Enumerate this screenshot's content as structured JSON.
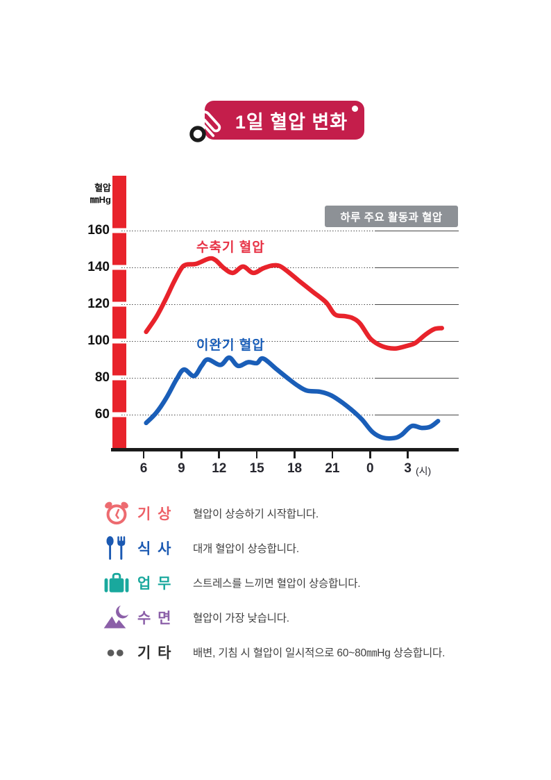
{
  "title": {
    "badge_text": "1일 혈압 변화"
  },
  "accent_colors": {
    "badge_red": "#c41e4b",
    "systolic_red": "#e8232b",
    "diastolic_blue": "#1a5eb8",
    "annotation_gray": "#8d9196"
  },
  "chart_data": {
    "type": "line",
    "title": "1일 혈압 변화",
    "annotation": "하루 주요 활동과 혈압",
    "ylabel_line1": "혈압",
    "ylabel_line2": "㎜Hg",
    "x_unit": "(시)",
    "ylim": [
      45,
      172
    ],
    "grid": true,
    "y_ticks": [
      "160",
      "140",
      "120",
      "100",
      "80",
      "60"
    ],
    "y_tick_values": [
      160,
      140,
      120,
      100,
      80,
      60
    ],
    "x_ticks": [
      {
        "label": "6",
        "hour": 6
      },
      {
        "label": "9",
        "hour": 9
      },
      {
        "label": "12",
        "hour": 12
      },
      {
        "label": "15",
        "hour": 15
      },
      {
        "label": "18",
        "hour": 18
      },
      {
        "label": "21",
        "hour": 21
      },
      {
        "label": "0",
        "hour": 24
      },
      {
        "label": "3",
        "hour": 27
      }
    ],
    "series": [
      {
        "name": "수축기 혈압",
        "color": "#e8232b",
        "label_color": "#e73346",
        "points": [
          [
            6.2,
            105
          ],
          [
            7,
            113
          ],
          [
            7.7,
            122
          ],
          [
            8.4,
            132
          ],
          [
            9,
            139.5
          ],
          [
            9.4,
            141.5
          ],
          [
            10.2,
            142
          ],
          [
            11.2,
            144.8
          ],
          [
            11.7,
            144
          ],
          [
            12.4,
            139.5
          ],
          [
            13.1,
            137
          ],
          [
            13.9,
            140.5
          ],
          [
            14.7,
            137
          ],
          [
            15.5,
            139.5
          ],
          [
            16.2,
            141
          ],
          [
            16.8,
            140.8
          ],
          [
            17.5,
            137.5
          ],
          [
            18.3,
            133
          ],
          [
            19.4,
            127
          ],
          [
            20.5,
            121
          ],
          [
            21.2,
            114.5
          ],
          [
            22,
            113.5
          ],
          [
            22.6,
            112.5
          ],
          [
            23.2,
            109.5
          ],
          [
            24,
            101.5
          ],
          [
            24.7,
            98
          ],
          [
            25.4,
            96.3
          ],
          [
            26.1,
            96
          ],
          [
            27,
            97.5
          ],
          [
            27.6,
            99
          ],
          [
            28.4,
            103.5
          ],
          [
            29.1,
            106.5
          ],
          [
            29.7,
            107
          ]
        ]
      },
      {
        "name": "이완기 혈압",
        "color": "#1a5eb8",
        "label_color": "#1a5eb8",
        "points": [
          [
            6.2,
            55.5
          ],
          [
            7,
            61
          ],
          [
            7.8,
            69
          ],
          [
            8.6,
            79
          ],
          [
            9.2,
            84.5
          ],
          [
            10,
            81
          ],
          [
            10.6,
            86.5
          ],
          [
            11.1,
            90
          ],
          [
            12.1,
            87
          ],
          [
            12.8,
            91
          ],
          [
            13.5,
            86.5
          ],
          [
            14.3,
            88.5
          ],
          [
            15,
            88
          ],
          [
            15.5,
            90.5
          ],
          [
            16.6,
            84.5
          ],
          [
            17.6,
            79
          ],
          [
            18.3,
            75.5
          ],
          [
            19,
            73
          ],
          [
            20,
            72.5
          ],
          [
            20.9,
            70.5
          ],
          [
            21.9,
            66
          ],
          [
            22.8,
            61
          ],
          [
            23.4,
            57
          ],
          [
            24.2,
            50.5
          ],
          [
            25,
            47.5
          ],
          [
            25.9,
            47.3
          ],
          [
            26.5,
            49
          ],
          [
            27.3,
            53.8
          ],
          [
            28.1,
            52.8
          ],
          [
            28.8,
            53.5
          ],
          [
            29.4,
            56.5
          ]
        ]
      }
    ]
  },
  "legend": {
    "items": [
      {
        "icon": "alarm-clock-icon",
        "color": "#ed6b70",
        "label_color": "#ed5f66",
        "label": "기 상",
        "desc": "혈압이 상승하기 시작합니다."
      },
      {
        "icon": "cutlery-icon",
        "color": "#1b59b2",
        "label_color": "#1b59b2",
        "label": "식 사",
        "desc": "대개 혈압이 상승합니다."
      },
      {
        "icon": "briefcase-icon",
        "color": "#19a89d",
        "label_color": "#19a89d",
        "label": "업 무",
        "desc": "스트레스를 느끼면 혈압이 상승합니다."
      },
      {
        "icon": "sleep-icon",
        "color": "#8b5fa8",
        "label_color": "#8b5fa8",
        "label": "수 면",
        "desc": "혈압이 가장 낮습니다."
      },
      {
        "icon": "dots-icon",
        "color": "#5a5a5a",
        "label_color": "#2e2e2e",
        "label": "기 타",
        "desc": "배변, 기침 시 혈압이 일시적으로 60~80㎜Hg 상승합니다."
      }
    ]
  }
}
